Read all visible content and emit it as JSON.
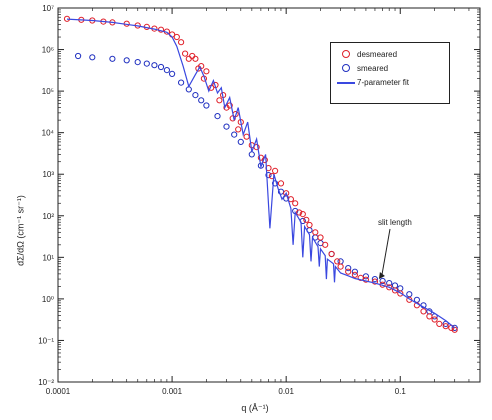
{
  "chart_data": {
    "type": "scatter",
    "title": "",
    "xlabel": "q (Å⁻¹)",
    "ylabel": "dΣ/dΩ (cm⁻¹ sr⁻¹)",
    "xscale": "log",
    "yscale": "log",
    "xlim": [
      0.0001,
      0.5
    ],
    "ylim": [
      0.01,
      10000000
    ],
    "xticks": [
      0.0001,
      0.001,
      0.01,
      0.1
    ],
    "xtick_labels": [
      "0.0001",
      "0.001",
      "0.01",
      "0.1"
    ],
    "yticks": [
      0.01,
      0.1,
      1,
      10,
      100,
      1000,
      10000,
      100000,
      1000000,
      10000000
    ],
    "ytick_labels": [
      "10⁻²",
      "10⁻¹",
      "10⁰",
      "10¹",
      "10²",
      "10³",
      "10⁴",
      "10⁵",
      "10⁶",
      "10⁷"
    ],
    "legend_position": "top-right",
    "grid": false,
    "colors": {
      "desmeared": "#e0202a",
      "smeared": "#2030c0",
      "fit": "#3a48e0"
    },
    "annotation": {
      "text": "slit length",
      "x": 0.065,
      "y": 3
    },
    "series": [
      {
        "name": "desmeared",
        "marker": "circle",
        "x": [
          0.00012,
          0.00016,
          0.0002,
          0.00025,
          0.0003,
          0.0004,
          0.0005,
          0.0006,
          0.0007,
          0.0008,
          0.0009,
          0.001,
          0.0011,
          0.0012,
          0.0013,
          0.0014,
          0.0015,
          0.0016,
          0.0017,
          0.0018,
          0.0019,
          0.002,
          0.0022,
          0.0024,
          0.0026,
          0.0028,
          0.003,
          0.0032,
          0.0034,
          0.0036,
          0.0038,
          0.004,
          0.0045,
          0.005,
          0.0055,
          0.006,
          0.0065,
          0.007,
          0.0075,
          0.008,
          0.009,
          0.01,
          0.011,
          0.012,
          0.013,
          0.014,
          0.015,
          0.016,
          0.018,
          0.02,
          0.022,
          0.025,
          0.028,
          0.03,
          0.035,
          0.04,
          0.045,
          0.05,
          0.06,
          0.07,
          0.08,
          0.09,
          0.1,
          0.12,
          0.14,
          0.16,
          0.18,
          0.2,
          0.22,
          0.25,
          0.28,
          0.3
        ],
        "y": [
          5500000,
          5200000,
          5000000,
          4700000,
          4500000,
          4200000,
          3800000,
          3500000,
          3200000,
          3000000,
          2700000,
          2300000,
          2000000,
          1500000,
          800000,
          600000,
          700000,
          600000,
          350000,
          400000,
          200000,
          300000,
          120000,
          140000,
          60000,
          80000,
          40000,
          45000,
          22000,
          28000,
          12000,
          18000,
          8000,
          5000,
          4500,
          2500,
          2200,
          1400,
          900,
          1200,
          600,
          350,
          250,
          200,
          120,
          110,
          80,
          60,
          40,
          30,
          20,
          12,
          8,
          6,
          4.5,
          3.8,
          3.2,
          2.9,
          2.6,
          2.2,
          1.9,
          1.6,
          1.35,
          0.95,
          0.7,
          0.5,
          0.38,
          0.32,
          0.25,
          0.22,
          0.2,
          0.18
        ]
      },
      {
        "name": "smeared",
        "marker": "circle",
        "x": [
          0.00015,
          0.0002,
          0.0003,
          0.0004,
          0.0005,
          0.0006,
          0.0007,
          0.0008,
          0.0009,
          0.001,
          0.0012,
          0.0014,
          0.0016,
          0.0018,
          0.002,
          0.0025,
          0.003,
          0.0035,
          0.004,
          0.005,
          0.006,
          0.007,
          0.008,
          0.009,
          0.01,
          0.012,
          0.014,
          0.016,
          0.018,
          0.02,
          0.025,
          0.03,
          0.035,
          0.04,
          0.05,
          0.06,
          0.07,
          0.08,
          0.09,
          0.1,
          0.12,
          0.14,
          0.16,
          0.18,
          0.2,
          0.25,
          0.3
        ],
        "y": [
          700000,
          650000,
          600000,
          550000,
          500000,
          460000,
          420000,
          380000,
          320000,
          260000,
          160000,
          110000,
          80000,
          60000,
          45000,
          25000,
          14000,
          9000,
          6000,
          3000,
          1600,
          950,
          600,
          380,
          260,
          130,
          75,
          45,
          30,
          22,
          12,
          8,
          5.5,
          4.5,
          3.5,
          3,
          2.7,
          2.4,
          2.1,
          1.8,
          1.3,
          0.95,
          0.7,
          0.5,
          0.38,
          0.25,
          0.2
        ]
      },
      {
        "name": "7-parameter fit",
        "marker": "line",
        "x": [
          0.00012,
          0.0002,
          0.0003,
          0.0005,
          0.0007,
          0.0009,
          0.001,
          0.0011,
          0.00125,
          0.0014,
          0.0016,
          0.00175,
          0.0019,
          0.0021,
          0.0023,
          0.0025,
          0.0027,
          0.0029,
          0.0032,
          0.0035,
          0.0038,
          0.0042,
          0.0046,
          0.005,
          0.0055,
          0.006,
          0.0066,
          0.0072,
          0.0078,
          0.0085,
          0.0092,
          0.01,
          0.011,
          0.0115,
          0.012,
          0.0135,
          0.014,
          0.0145,
          0.016,
          0.0165,
          0.017,
          0.019,
          0.0195,
          0.02,
          0.022,
          0.0225,
          0.023,
          0.026,
          0.0265,
          0.027,
          0.03,
          0.035,
          0.04,
          0.05,
          0.06,
          0.08,
          0.1,
          0.12,
          0.15,
          0.2,
          0.25,
          0.3
        ],
        "y": [
          5400000,
          5000000,
          4500000,
          3700000,
          3100000,
          2600000,
          2000000,
          1200000,
          400000,
          130000,
          250000,
          380000,
          230000,
          100000,
          180000,
          90000,
          120000,
          40000,
          70000,
          20000,
          40000,
          9000,
          18000,
          3500,
          7000,
          1500,
          3000,
          50,
          1000,
          450,
          250,
          350,
          150,
          20,
          120,
          70,
          10,
          55,
          35,
          8,
          30,
          18,
          6,
          16,
          11,
          3,
          9,
          7,
          2.5,
          6,
          4.2,
          3.6,
          3.1,
          2.7,
          2.4,
          1.9,
          1.4,
          1.0,
          0.7,
          0.45,
          0.3,
          0.2
        ]
      }
    ]
  }
}
